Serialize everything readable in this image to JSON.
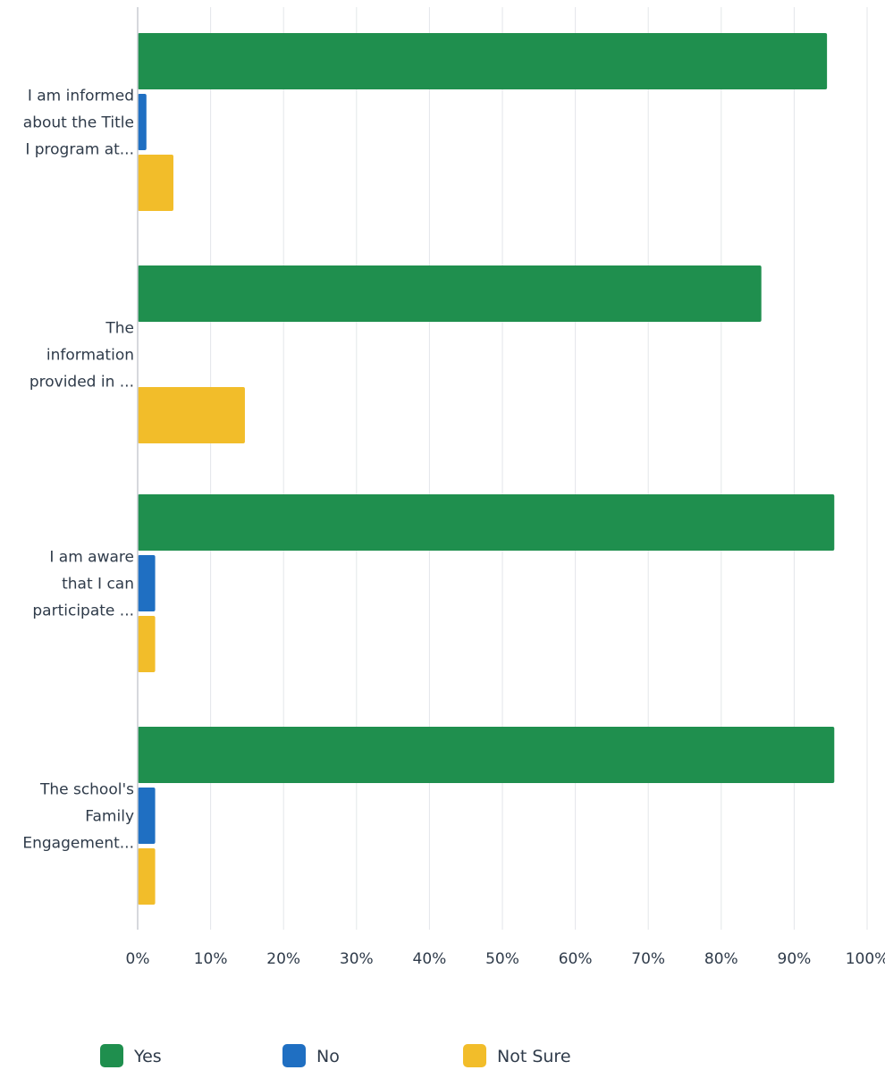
{
  "chart_data": {
    "type": "bar",
    "orientation": "horizontal",
    "categories": [
      [
        "I am informed",
        "about the Title",
        "I program at..."
      ],
      [
        "The",
        "information",
        "provided in ..."
      ],
      [
        "I am aware",
        "that I can",
        "participate ..."
      ],
      [
        "The school's",
        "Family",
        "Engagement..."
      ]
    ],
    "series": [
      {
        "name": "Yes",
        "color": "#1f8f4e",
        "values": [
          94.5,
          85.5,
          95.5,
          95.5
        ]
      },
      {
        "name": "No",
        "color": "#1f6fc2",
        "values": [
          1.2,
          0,
          2.4,
          2.4
        ]
      },
      {
        "name": "Not Sure",
        "color": "#f2bd2a",
        "values": [
          4.9,
          14.7,
          2.4,
          2.4
        ]
      }
    ],
    "x_ticks": [
      "0%",
      "10%",
      "20%",
      "30%",
      "40%",
      "50%",
      "60%",
      "70%",
      "80%",
      "90%",
      "100%"
    ],
    "xlim": [
      0,
      100
    ],
    "grid": "vertical",
    "legend_position": "bottom"
  }
}
